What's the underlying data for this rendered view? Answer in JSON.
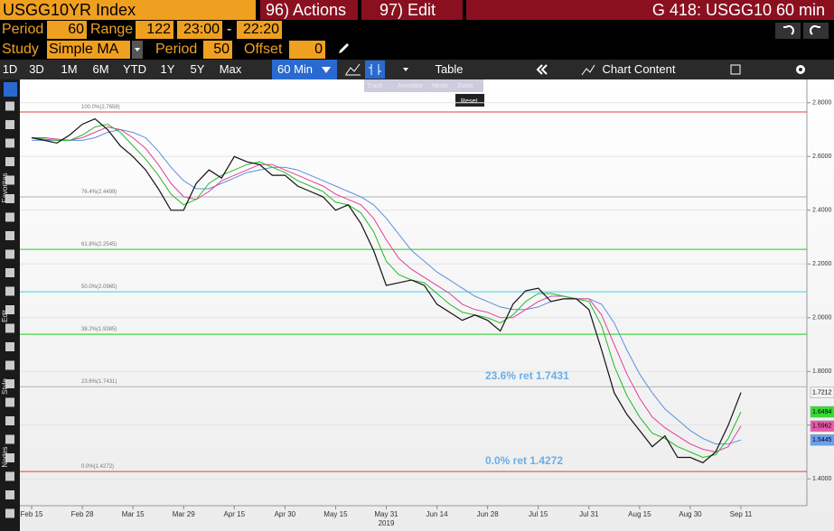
{
  "header": {
    "security": "USGG10YR Index",
    "actions": "96) Actions",
    "edit": "97) Edit",
    "page": "G 418: USGG10 60 min"
  },
  "params": {
    "period_label": "Period",
    "period": "60",
    "range_label": "Range",
    "range": "122",
    "start": "23:00",
    "dash": "-",
    "end": "22:20",
    "study_label": "Study",
    "study": "Simple MA",
    "study_period_label": "Period",
    "study_period": "50",
    "offset_label": "Offset",
    "offset": "0"
  },
  "toolbar": {
    "ranges": [
      "1D",
      "3D",
      "1M",
      "6M",
      "YTD",
      "1Y",
      "5Y",
      "Max"
    ],
    "interval": "60 Min",
    "table": "Table",
    "content": "Chart Content"
  },
  "popup": [
    "Track",
    "Annotate",
    "News",
    "Zoom",
    "Reset"
  ],
  "sidebar": [
    "Favorites",
    "Edit",
    "Style",
    "Nodes"
  ],
  "chart_data": {
    "type": "line",
    "categories": [
      "Feb 15",
      null,
      null,
      null,
      "Feb 28",
      null,
      null,
      null,
      "Mar 15",
      null,
      null,
      null,
      "Mar 29",
      null,
      null,
      null,
      "Apr 15",
      null,
      null,
      null,
      "Apr 30",
      null,
      null,
      null,
      "May 15",
      null,
      null,
      null,
      "May 31",
      null,
      null,
      null,
      "Jun 14",
      null,
      null,
      null,
      "Jun 28",
      null,
      null,
      null,
      "Jul 15",
      null,
      null,
      null,
      "Jul 31",
      null,
      null,
      null,
      "Aug 15",
      null,
      null,
      null,
      "Aug 30",
      null,
      null,
      null,
      "Sep 11"
    ],
    "year_label": "2019",
    "series": [
      {
        "color": "#111111",
        "values": [
          2.67,
          2.66,
          2.65,
          2.68,
          2.72,
          2.74,
          2.7,
          2.64,
          2.6,
          2.55,
          2.48,
          2.4,
          2.4,
          2.5,
          2.55,
          2.52,
          2.6,
          2.58,
          2.57,
          2.53,
          2.53,
          2.49,
          2.47,
          2.45,
          2.4,
          2.42,
          2.35,
          2.25,
          2.12,
          2.13,
          2.14,
          2.12,
          2.05,
          2.02,
          1.99,
          2.01,
          1.99,
          1.95,
          2.05,
          2.1,
          2.11,
          2.06,
          2.07,
          2.07,
          2.03,
          1.88,
          1.72,
          1.64,
          1.58,
          1.52,
          1.56,
          1.48,
          1.48,
          1.46,
          1.5,
          1.6,
          1.7212
        ],
        "tag": "#f2f2f2"
      },
      {
        "color": "#22bb22",
        "values": [
          2.67,
          2.665,
          2.66,
          2.66,
          2.68,
          2.71,
          2.72,
          2.69,
          2.64,
          2.59,
          2.53,
          2.46,
          2.42,
          2.44,
          2.5,
          2.53,
          2.55,
          2.57,
          2.58,
          2.56,
          2.54,
          2.51,
          2.49,
          2.47,
          2.43,
          2.42,
          2.39,
          2.32,
          2.21,
          2.16,
          2.14,
          2.13,
          2.09,
          2.05,
          2.02,
          2.01,
          2.0,
          1.98,
          2.01,
          2.06,
          2.09,
          2.09,
          2.08,
          2.07,
          2.06,
          1.97,
          1.82,
          1.71,
          1.63,
          1.57,
          1.55,
          1.52,
          1.5,
          1.48,
          1.49,
          1.55,
          1.6494
        ],
        "tag": "#33dd33"
      },
      {
        "color": "#e0409a",
        "values": [
          2.67,
          2.67,
          2.665,
          2.66,
          2.67,
          2.69,
          2.71,
          2.7,
          2.67,
          2.63,
          2.57,
          2.5,
          2.45,
          2.44,
          2.47,
          2.51,
          2.53,
          2.55,
          2.57,
          2.57,
          2.55,
          2.53,
          2.51,
          2.49,
          2.46,
          2.44,
          2.42,
          2.37,
          2.29,
          2.22,
          2.18,
          2.15,
          2.12,
          2.09,
          2.05,
          2.03,
          2.02,
          2.0,
          2.0,
          2.03,
          2.06,
          2.08,
          2.08,
          2.07,
          2.07,
          2.01,
          1.9,
          1.79,
          1.7,
          1.63,
          1.59,
          1.56,
          1.53,
          1.51,
          1.5,
          1.52,
          1.5962
        ],
        "tag": "#e85aa8"
      },
      {
        "color": "#5b8fe0",
        "values": [
          2.66,
          2.66,
          2.66,
          2.66,
          2.66,
          2.67,
          2.69,
          2.7,
          2.69,
          2.67,
          2.62,
          2.56,
          2.51,
          2.48,
          2.48,
          2.5,
          2.52,
          2.54,
          2.55,
          2.56,
          2.56,
          2.55,
          2.53,
          2.51,
          2.49,
          2.47,
          2.45,
          2.42,
          2.37,
          2.31,
          2.25,
          2.21,
          2.17,
          2.14,
          2.11,
          2.08,
          2.06,
          2.04,
          2.03,
          2.03,
          2.04,
          2.06,
          2.07,
          2.07,
          2.07,
          2.05,
          1.98,
          1.88,
          1.79,
          1.72,
          1.66,
          1.62,
          1.58,
          1.55,
          1.53,
          1.53,
          1.5445
        ],
        "tag": "#6aa0f0"
      }
    ],
    "levels": [
      {
        "label": "100.0%(2.7658)",
        "value": 2.7658,
        "color": "#e04040"
      },
      {
        "label": "76.4%(2.4499)",
        "value": 2.4499,
        "color": "#b0b0b0"
      },
      {
        "label": "61.8%(2.2545)",
        "value": 2.2545,
        "color": "#22cc22"
      },
      {
        "label": "50.0%(2.0965)",
        "value": 2.0965,
        "color": "#40d0e0"
      },
      {
        "label": "38.2%(1.9385)",
        "value": 1.9385,
        "color": "#22cc22"
      },
      {
        "label": "23.6%(1.7431)",
        "value": 1.7431,
        "color": "#b0b0b0",
        "note": "23.6% ret 1.7431"
      },
      {
        "label": "0.0%(1.4272)",
        "value": 1.4272,
        "color": "#e04040",
        "note": "0.0% ret 1.4272"
      }
    ],
    "ylim": [
      1.3,
      2.88
    ],
    "yticks": [
      {
        "value": 1.4,
        "label": "1.4000"
      },
      {
        "value": 1.6,
        "label": "1.6000"
      },
      {
        "value": 1.8,
        "label": "1.8000"
      },
      {
        "value": 2.0,
        "label": "2.0000"
      },
      {
        "value": 2.2,
        "label": "2.2000"
      },
      {
        "value": 2.4,
        "label": "2.4000"
      },
      {
        "value": 2.6,
        "label": "2.6000"
      },
      {
        "value": 2.8,
        "label": "2.8000"
      }
    ],
    "grid": true
  }
}
